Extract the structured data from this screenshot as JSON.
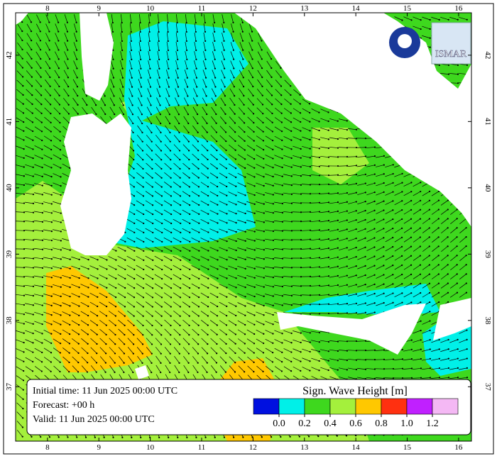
{
  "map": {
    "xlim": [
      7.38,
      16.25
    ],
    "ylim": [
      36.18,
      42.64
    ],
    "xticks": [
      8,
      9,
      10,
      11,
      12,
      13,
      14,
      15,
      16
    ],
    "yticks": [
      37,
      38,
      39,
      40,
      41,
      42
    ]
  },
  "info": {
    "lines": [
      "Initial time: 11 Jun 2025 00:00 UTC",
      "Forecast: +00 h",
      "Valid: 11 Jun 2025 00:00 UTC"
    ]
  },
  "legend": {
    "title": "Sign. Wave Height [m]",
    "colors": [
      "#0010e0",
      "#00f0e8",
      "#3ed81e",
      "#a4f03c",
      "#ffc800",
      "#ff3010",
      "#c020ff",
      "#f4b8f4"
    ],
    "ticks": [
      {
        "value": 0,
        "label": "0.0"
      },
      {
        "value": 0.2,
        "label": "0.2"
      },
      {
        "value": 0.4,
        "label": "0.4"
      },
      {
        "value": 0.6,
        "label": "0.6"
      },
      {
        "value": 0.8,
        "label": "0.8"
      },
      {
        "value": 1.0,
        "label": "1.0"
      },
      {
        "value": 1.2,
        "label": "1.2"
      }
    ]
  },
  "logos": {
    "right": "ISMAR"
  }
}
